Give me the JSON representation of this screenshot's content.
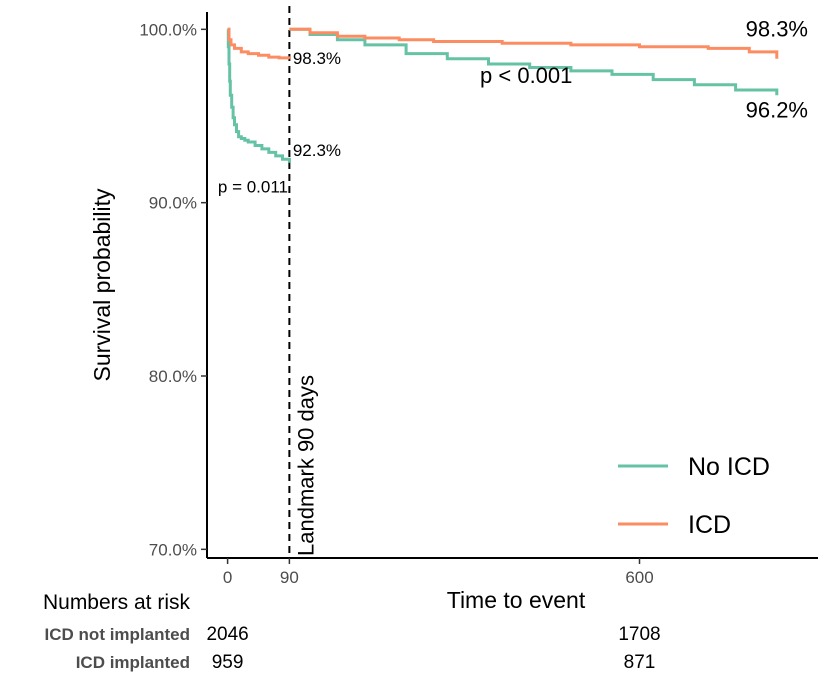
{
  "chart_data": {
    "type": "line",
    "xlabel": "Time to event",
    "ylabel": "Survival probability",
    "xlim": [
      -30,
      860
    ],
    "ylim": [
      69.5,
      101
    ],
    "x_ticks": [
      0,
      90,
      600
    ],
    "y_ticks": [
      70,
      80,
      90,
      100
    ],
    "y_tick_labels": [
      "70.0%",
      "80.0%",
      "90.0%",
      "100.0%"
    ],
    "landmark": {
      "x": 90,
      "label": "Landmark 90 days"
    },
    "grid": false,
    "legend_position": "bottom-right",
    "series": [
      {
        "name": "No ICD",
        "color": "#66c2a5",
        "segments": [
          {
            "x": [
              0,
              1,
              2,
              3,
              4,
              6,
              8,
              10,
              13,
              16,
              20,
              25,
              30,
              40,
              50,
              60,
              70,
              80,
              90
            ],
            "y": [
              100,
              99.0,
              98.0,
              97.0,
              96.2,
              95.5,
              94.9,
              94.5,
              94.1,
              93.8,
              93.7,
              93.6,
              93.5,
              93.3,
              93.1,
              92.9,
              92.7,
              92.5,
              92.3
            ]
          },
          {
            "x": [
              90,
              120,
              160,
              200,
              260,
              320,
              380,
              440,
              500,
              560,
              620,
              680,
              740,
              800
            ],
            "y": [
              100,
              99.7,
              99.4,
              99.1,
              98.6,
              98.3,
              98.0,
              97.8,
              97.6,
              97.4,
              97.1,
              96.8,
              96.5,
              96.2
            ]
          }
        ]
      },
      {
        "name": "ICD",
        "color": "#fc8d62",
        "segments": [
          {
            "x": [
              0,
              2,
              5,
              10,
              20,
              30,
              45,
              60,
              75,
              90
            ],
            "y": [
              100,
              99.4,
              99.1,
              98.9,
              98.7,
              98.6,
              98.5,
              98.4,
              98.35,
              98.3
            ]
          },
          {
            "x": [
              90,
              120,
              160,
              200,
              250,
              300,
              400,
              500,
              600,
              700,
              760,
              800
            ],
            "y": [
              100,
              99.8,
              99.6,
              99.5,
              99.4,
              99.3,
              99.2,
              99.1,
              99.0,
              98.9,
              98.7,
              98.3
            ]
          }
        ]
      }
    ],
    "annotations": [
      {
        "text": "p = 0.011",
        "x": 88,
        "y": 90.6,
        "anchor": "end",
        "size": "small"
      },
      {
        "text": "92.3%",
        "x": 95,
        "y": 92.7,
        "anchor": "start",
        "size": "small"
      },
      {
        "text": "98.3%",
        "x": 95,
        "y": 98.0,
        "anchor": "start",
        "size": "small"
      },
      {
        "text": "p < 0.001",
        "x": 435,
        "y": 96.9,
        "anchor": "middle",
        "size": "large"
      },
      {
        "text": "98.3%",
        "x": 800,
        "y": 99.6,
        "anchor": "middle",
        "size": "large"
      },
      {
        "text": "96.2%",
        "x": 800,
        "y": 94.9,
        "anchor": "middle",
        "size": "large"
      }
    ],
    "risk_table": {
      "title": "Numbers at risk",
      "rows": [
        {
          "label": "ICD not implanted",
          "values": [
            {
              "x": 0,
              "n": "2046"
            },
            {
              "x": 600,
              "n": "1708"
            }
          ]
        },
        {
          "label": "ICD implanted",
          "values": [
            {
              "x": 0,
              "n": "959"
            },
            {
              "x": 600,
              "n": "871"
            }
          ]
        }
      ]
    }
  }
}
